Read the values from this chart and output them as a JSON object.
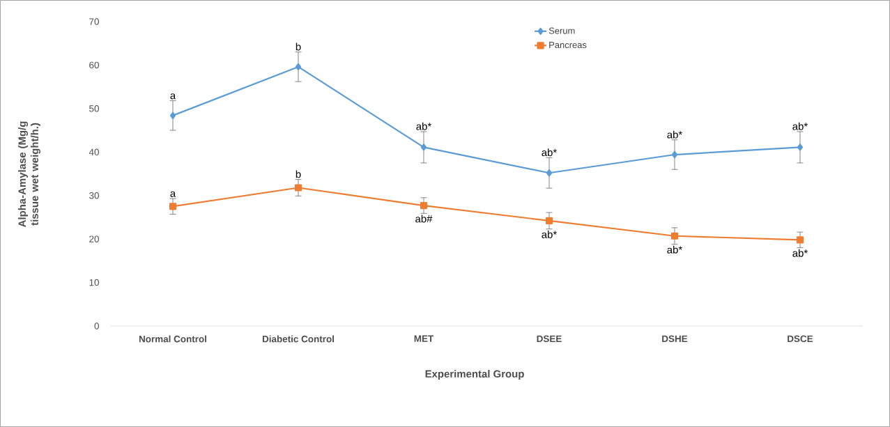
{
  "chart_data": {
    "type": "line",
    "categories": [
      "Normal Control",
      "Diabetic Control",
      "MET",
      "DSEE",
      "DSHE",
      "DSCE"
    ],
    "series": [
      {
        "name": "Serum",
        "color": "#5b9bd5",
        "marker": "diamond",
        "values": [
          48.4,
          59.6,
          41.1,
          35.2,
          39.4,
          41.1
        ],
        "errors": [
          3.4,
          3.4,
          3.6,
          3.5,
          3.4,
          3.6
        ]
      },
      {
        "name": "Pancreas",
        "color": "#ed7d31",
        "marker": "square",
        "values": [
          27.5,
          31.8,
          27.7,
          24.2,
          20.7,
          19.8
        ],
        "errors": [
          1.8,
          1.9,
          1.8,
          1.9,
          1.9,
          1.8
        ]
      }
    ],
    "ylim": [
      0,
      70
    ],
    "yticks": [
      0,
      10,
      20,
      30,
      40,
      50,
      60,
      70
    ],
    "xlabel": "Experimental Group",
    "ylabel": "Alpha-Amylase (Mg/g tissue wet weight/h.)",
    "legend": "top",
    "annotations": [
      {
        "text": "a",
        "x": "Normal Control",
        "y": 51.8
      },
      {
        "text": "b",
        "x": "Diabetic Control",
        "y": 63.0
      },
      {
        "text": "ab*",
        "x": "MET",
        "y": 44.7
      },
      {
        "text": "ab*",
        "x": "DSEE",
        "y": 38.7
      },
      {
        "text": "ab*",
        "x": "DSHE",
        "y": 42.8
      },
      {
        "text": "ab*",
        "x": "DSCE",
        "y": 44.7
      },
      {
        "text": "a",
        "x": "Normal Control",
        "y": 29.3
      },
      {
        "text": "b",
        "x": "Diabetic Control",
        "y": 33.7
      },
      {
        "text": "ab#",
        "x": "MET",
        "y": 25.9
      },
      {
        "text": "ab*",
        "x": "DSEE",
        "y": 22.3
      },
      {
        "text": "ab*",
        "x": "DSHE",
        "y": 18.8
      },
      {
        "text": "ab*",
        "x": "DSCE",
        "y": 18.0
      }
    ]
  }
}
